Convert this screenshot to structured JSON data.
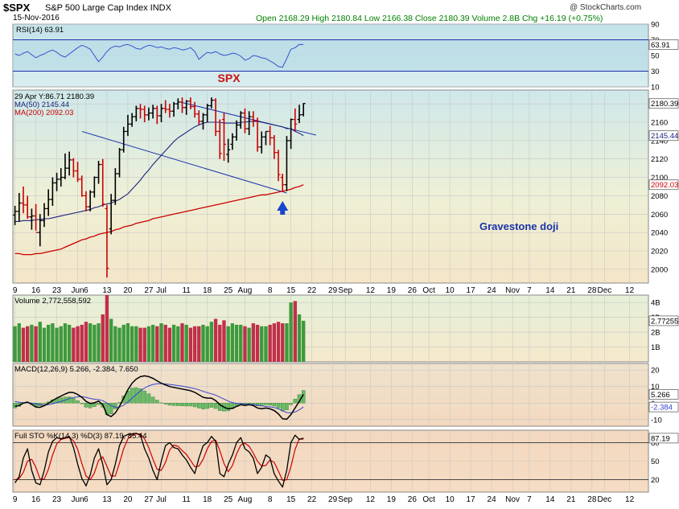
{
  "header": {
    "symbol": "$SPX",
    "name": "S&P 500 Large Cap Index  INDX",
    "date": "15-Nov-2016",
    "quote": "Open 2168.29  High 2180.84  Low 2166.38  Close 2180.39  Volume 2.8B  Chg +16.19 (+0.75%)",
    "source": "@ StockCharts.com",
    "quote_color": "#008000"
  },
  "chart_data": [
    {
      "type": "line",
      "name": "rsi",
      "legend": "RSI(14) 63.91",
      "last_label": "63.91",
      "ylim": [
        10,
        90
      ],
      "ticks": [
        90,
        70,
        50,
        30,
        10
      ],
      "levels": [
        70,
        30
      ],
      "line_color": "#3355cc",
      "fill_color": "#b9dbe6",
      "values": [
        52,
        50,
        53,
        55,
        51,
        47,
        50,
        52,
        55,
        57,
        54,
        50,
        48,
        52,
        56,
        60,
        63,
        61,
        58,
        50,
        42,
        48,
        55,
        60,
        62,
        61,
        63,
        64,
        62,
        59,
        58,
        61,
        63,
        62,
        60,
        61,
        59,
        58,
        60,
        59,
        57,
        58,
        60,
        55,
        45,
        50,
        54,
        53,
        55,
        52,
        50,
        51,
        53,
        52,
        49,
        44,
        46,
        50,
        49,
        47,
        46,
        43,
        40,
        36,
        35,
        46,
        58,
        60,
        64,
        63.91
      ]
    },
    {
      "type": "candlestick",
      "name": "price",
      "title": "SPX",
      "annotation": "Gravestone doji",
      "legend": [
        "29 Apr Y:86.71 2180.39",
        "MA(50) 2145.44",
        "MA(200) 2092.03"
      ],
      "ylim": [
        1985,
        2195
      ],
      "ticks": [
        2000,
        2020,
        2040,
        2060,
        2080,
        2100,
        2120,
        2140,
        2160,
        2180
      ],
      "price_labels": [
        "2180.39",
        "2145.44",
        "2092.03"
      ],
      "ma50_color": "#1a237e",
      "ma200_color": "#cc0000",
      "trend_color": "#1a33aa",
      "bar_colors": {
        "up": "#000000",
        "down": "#cc0000"
      },
      "open": [
        2059,
        2063,
        2072,
        2070,
        2057,
        2058,
        2040,
        2053,
        2066,
        2076,
        2094,
        2098,
        2100,
        2110,
        2119,
        2107,
        2098,
        2080,
        2068,
        2084,
        2100,
        2114,
        2066,
        2044,
        2075,
        2104,
        2130,
        2150,
        2158,
        2166,
        2175,
        2174,
        2168,
        2170,
        2175,
        2167,
        2175,
        2174,
        2172,
        2180,
        2182,
        2176,
        2183,
        2177,
        2169,
        2161,
        2168,
        2178,
        2184,
        2150,
        2163,
        2125,
        2136,
        2144,
        2157,
        2170,
        2153,
        2166,
        2162,
        2133,
        2144,
        2150,
        2143,
        2127,
        2100,
        2092,
        2140,
        2163,
        2163,
        2168.29
      ],
      "high": [
        2069,
        2083,
        2090,
        2080,
        2066,
        2071,
        2060,
        2072,
        2087,
        2100,
        2105,
        2110,
        2126,
        2128,
        2121,
        2117,
        2102,
        2085,
        2086,
        2101,
        2118,
        2120,
        2070,
        2082,
        2110,
        2132,
        2155,
        2168,
        2170,
        2178,
        2180,
        2178,
        2176,
        2179,
        2178,
        2180,
        2184,
        2180,
        2182,
        2186,
        2187,
        2184,
        2187,
        2182,
        2173,
        2170,
        2180,
        2187,
        2186,
        2163,
        2170,
        2142,
        2148,
        2162,
        2172,
        2175,
        2172,
        2172,
        2165,
        2150,
        2150,
        2156,
        2146,
        2130,
        2104,
        2145,
        2164,
        2175,
        2179,
        2180.84
      ],
      "low": [
        2048,
        2052,
        2061,
        2055,
        2043,
        2042,
        2025,
        2046,
        2058,
        2069,
        2085,
        2090,
        2098,
        2102,
        2100,
        2095,
        2079,
        2063,
        2063,
        2078,
        2093,
        2068,
        1991,
        2038,
        2070,
        2100,
        2127,
        2145,
        2155,
        2161,
        2164,
        2160,
        2162,
        2164,
        2158,
        2160,
        2170,
        2165,
        2166,
        2174,
        2170,
        2168,
        2174,
        2165,
        2157,
        2152,
        2160,
        2175,
        2145,
        2120,
        2118,
        2116,
        2130,
        2140,
        2153,
        2148,
        2146,
        2155,
        2128,
        2126,
        2135,
        2135,
        2120,
        2096,
        2084,
        2085,
        2131,
        2150,
        2159,
        2166.38
      ],
      "close": [
        2063,
        2072,
        2070,
        2057,
        2058,
        2040,
        2053,
        2066,
        2076,
        2094,
        2098,
        2100,
        2110,
        2119,
        2107,
        2098,
        2080,
        2068,
        2084,
        2100,
        2114,
        2071,
        2001,
        2075,
        2104,
        2130,
        2150,
        2158,
        2166,
        2175,
        2174,
        2168,
        2170,
        2175,
        2167,
        2175,
        2174,
        2172,
        2180,
        2182,
        2176,
        2183,
        2177,
        2169,
        2161,
        2168,
        2178,
        2184,
        2150,
        2126,
        2136,
        2130,
        2144,
        2157,
        2170,
        2153,
        2166,
        2162,
        2133,
        2144,
        2150,
        2143,
        2127,
        2103,
        2092,
        2140,
        2163,
        2158,
        2168,
        2180.39
      ],
      "ma50": [
        2052,
        2052,
        2053,
        2053,
        2053,
        2054,
        2054,
        2055,
        2055,
        2056,
        2057,
        2058,
        2059,
        2060,
        2061,
        2062,
        2063,
        2064,
        2065,
        2067,
        2068,
        2070,
        2071,
        2072,
        2074,
        2076,
        2079,
        2082,
        2087,
        2092,
        2097,
        2103,
        2108,
        2114,
        2119,
        2124,
        2129,
        2134,
        2139,
        2143,
        2146,
        2149,
        2152,
        2155,
        2157,
        2159,
        2160,
        2160,
        2160,
        2160,
        2159,
        2159,
        2159,
        2159,
        2160,
        2160,
        2161,
        2161,
        2161,
        2160,
        2159,
        2158,
        2157,
        2156,
        2155,
        2153,
        2153,
        2150,
        2148,
        2145.44
      ],
      "ma200": [
        2017,
        2017,
        2016,
        2016,
        2016,
        2017,
        2017,
        2018,
        2019,
        2020,
        2021,
        2022,
        2024,
        2026,
        2028,
        2030,
        2032,
        2033,
        2035,
        2036,
        2038,
        2039,
        2040,
        2041,
        2043,
        2044,
        2046,
        2047,
        2048,
        2050,
        2051,
        2052,
        2053,
        2055,
        2056,
        2057,
        2058,
        2059,
        2060,
        2061,
        2062,
        2063,
        2064,
        2065,
        2066,
        2067,
        2068,
        2069,
        2070,
        2071,
        2072,
        2073,
        2074,
        2075,
        2076,
        2077,
        2078,
        2079,
        2080,
        2081,
        2081,
        2082,
        2083,
        2084,
        2085,
        2086,
        2087,
        2089,
        2090,
        2092.03
      ],
      "upper_trendline": [
        [
          39.5,
          2182
        ],
        [
          72,
          2146
        ]
      ],
      "lower_trendline": [
        [
          16,
          2150
        ],
        [
          65,
          2083
        ]
      ]
    },
    {
      "type": "bar",
      "name": "volume",
      "legend": "Volume 2,772,558,592",
      "last_label": "2.77255",
      "ylim": [
        0,
        4.5
      ],
      "ticks": [
        4,
        3,
        2,
        1
      ],
      "tick_labels": [
        "4B",
        "3B",
        "2B",
        "1B"
      ],
      "values": [
        2.4,
        2.6,
        2.3,
        2.4,
        2.5,
        2.4,
        2.7,
        2.3,
        2.5,
        2.6,
        2.3,
        2.4,
        2.6,
        2.5,
        2.3,
        2.4,
        2.5,
        2.7,
        2.6,
        2.5,
        2.6,
        3.2,
        4.5,
        2.9,
        2.4,
        2.3,
        2.5,
        2.6,
        2.4,
        2.4,
        2.3,
        2.3,
        2.4,
        2.5,
        2.4,
        2.6,
        2.5,
        2.3,
        2.5,
        2.4,
        2.6,
        2.5,
        2.3,
        2.4,
        2.4,
        2.5,
        2.4,
        2.7,
        2.9,
        2.5,
        2.8,
        2.4,
        2.6,
        2.5,
        2.5,
        2.4,
        2.3,
        2.6,
        2.5,
        2.4,
        2.4,
        2.5,
        2.6,
        2.7,
        2.6,
        2.6,
        4.0,
        4.1,
        3.2,
        2.77
      ]
    },
    {
      "type": "line",
      "name": "macd",
      "legend": "MACD(12,26,9) 5.266, -2.384, 7.650",
      "last_labels": [
        "5.266",
        "-2.384"
      ],
      "ylim": [
        -14,
        24
      ],
      "ticks": [
        20,
        10,
        0,
        -10
      ],
      "macd": [
        -2,
        -1.5,
        0,
        0.6,
        -0.8,
        -2.4,
        -2.6,
        -1.6,
        -0.2,
        1.6,
        3,
        4.2,
        5.5,
        6.5,
        6.3,
        5.2,
        3.5,
        1,
        -0.2,
        0.2,
        1.2,
        -1,
        -7,
        -8.2,
        -6,
        -2,
        3,
        8,
        12,
        14.5,
        16,
        16.5,
        16,
        15,
        13.5,
        12,
        11,
        10,
        9.5,
        9,
        8.5,
        8,
        7.5,
        6.5,
        5,
        3.5,
        3,
        3,
        1.5,
        -1,
        -2.5,
        -3.5,
        -3.2,
        -2,
        -1,
        -1.5,
        -1,
        -1.5,
        -3,
        -3.5,
        -3,
        -3.5,
        -4.5,
        -6.5,
        -9.5,
        -9.8,
        -7,
        -3,
        1,
        5.266
      ],
      "signal": [
        1,
        0.5,
        0.2,
        0.2,
        0,
        -0.5,
        -1,
        -1.2,
        -1,
        -0.4,
        0.3,
        1,
        1.8,
        2.7,
        3.4,
        3.8,
        3.9,
        3.5,
        2.8,
        2.3,
        2.1,
        1.5,
        0,
        -1.6,
        -2.5,
        -2.4,
        -1.3,
        0.6,
        2.9,
        5.2,
        7.3,
        9.1,
        10.4,
        11.3,
        11.7,
        11.8,
        11.6,
        11.3,
        11,
        10.6,
        10.2,
        9.8,
        9.3,
        8.8,
        8,
        7.1,
        6.3,
        5.6,
        4.8,
        3.6,
        2.4,
        1.2,
        0.3,
        -0.2,
        -0.4,
        -0.6,
        -0.7,
        -0.9,
        -1.3,
        -1.7,
        -2,
        -2.3,
        -2.7,
        -3.5,
        -4.7,
        -5.7,
        -6,
        -5.4,
        -4.1,
        -2.384
      ],
      "colors": {
        "macd": "#000000",
        "signal": "#3344cc",
        "hist": "#66bb66"
      }
    },
    {
      "type": "line",
      "name": "stochastic",
      "legend": "Full STO %K(14,3) %D(3) 87.19, 85.44",
      "last_label": "87.19",
      "ylim": [
        0,
        100
      ],
      "ticks": [
        80,
        50,
        20
      ],
      "levels": [
        80,
        20
      ],
      "k": [
        15,
        25,
        55,
        70,
        35,
        15,
        12,
        35,
        65,
        82,
        88,
        86,
        88,
        90,
        72,
        45,
        22,
        10,
        28,
        55,
        70,
        45,
        12,
        20,
        45,
        75,
        90,
        93,
        94,
        95,
        92,
        70,
        55,
        35,
        20,
        50,
        75,
        80,
        72,
        70,
        60,
        52,
        40,
        30,
        55,
        75,
        80,
        90,
        82,
        30,
        25,
        45,
        60,
        80,
        88,
        70,
        65,
        55,
        30,
        40,
        60,
        55,
        30,
        18,
        8,
        35,
        80,
        92,
        85,
        87.19
      ],
      "d": [
        20,
        22,
        32,
        50,
        53,
        40,
        21,
        21,
        37,
        60,
        78,
        85,
        87,
        88,
        83,
        69,
        46,
        26,
        20,
        31,
        51,
        57,
        42,
        26,
        26,
        47,
        70,
        86,
        92,
        94,
        94,
        86,
        72,
        53,
        37,
        35,
        48,
        68,
        76,
        74,
        67,
        61,
        51,
        41,
        42,
        53,
        70,
        82,
        84,
        67,
        46,
        33,
        43,
        62,
        76,
        79,
        74,
        63,
        50,
        42,
        43,
        52,
        48,
        34,
        19,
        20,
        41,
        69,
        86,
        85.44
      ],
      "colors": {
        "k": "#000000",
        "d": "#cc0000"
      }
    }
  ],
  "xaxis": {
    "labels": [
      {
        "bar": 0,
        "text": "9"
      },
      {
        "bar": 5,
        "text": "16"
      },
      {
        "bar": 10,
        "text": "23"
      },
      {
        "bar": 15,
        "text": "Jun"
      },
      {
        "bar": 17,
        "text": "6"
      },
      {
        "bar": 22,
        "text": "13"
      },
      {
        "bar": 27,
        "text": "20"
      },
      {
        "bar": 32,
        "text": "27"
      },
      {
        "bar": 35,
        "text": "Jul"
      },
      {
        "bar": 41,
        "text": "11"
      },
      {
        "bar": 46,
        "text": "18"
      },
      {
        "bar": 51,
        "text": "25"
      },
      {
        "bar": 55,
        "text": "Aug"
      },
      {
        "bar": 61,
        "text": "8"
      },
      {
        "bar": 66,
        "text": "15"
      },
      {
        "bar": 71,
        "text": "22"
      },
      {
        "bar": 76,
        "text": "29"
      },
      {
        "bar": 79,
        "text": "Sep"
      },
      {
        "bar": 85,
        "text": "12"
      },
      {
        "bar": 90,
        "text": "19"
      },
      {
        "bar": 95,
        "text": "26"
      },
      {
        "bar": 99,
        "text": "Oct"
      },
      {
        "bar": 104,
        "text": "10"
      },
      {
        "bar": 109,
        "text": "17"
      },
      {
        "bar": 114,
        "text": "24"
      },
      {
        "bar": 119,
        "text": "Nov"
      },
      {
        "bar": 123,
        "text": "7"
      },
      {
        "bar": 128,
        "text": "14"
      },
      {
        "bar": 133,
        "text": "21"
      },
      {
        "bar": 138,
        "text": "28"
      },
      {
        "bar": 141,
        "text": "Dec"
      },
      {
        "bar": 147,
        "text": "12"
      }
    ],
    "bars_total": 152
  }
}
